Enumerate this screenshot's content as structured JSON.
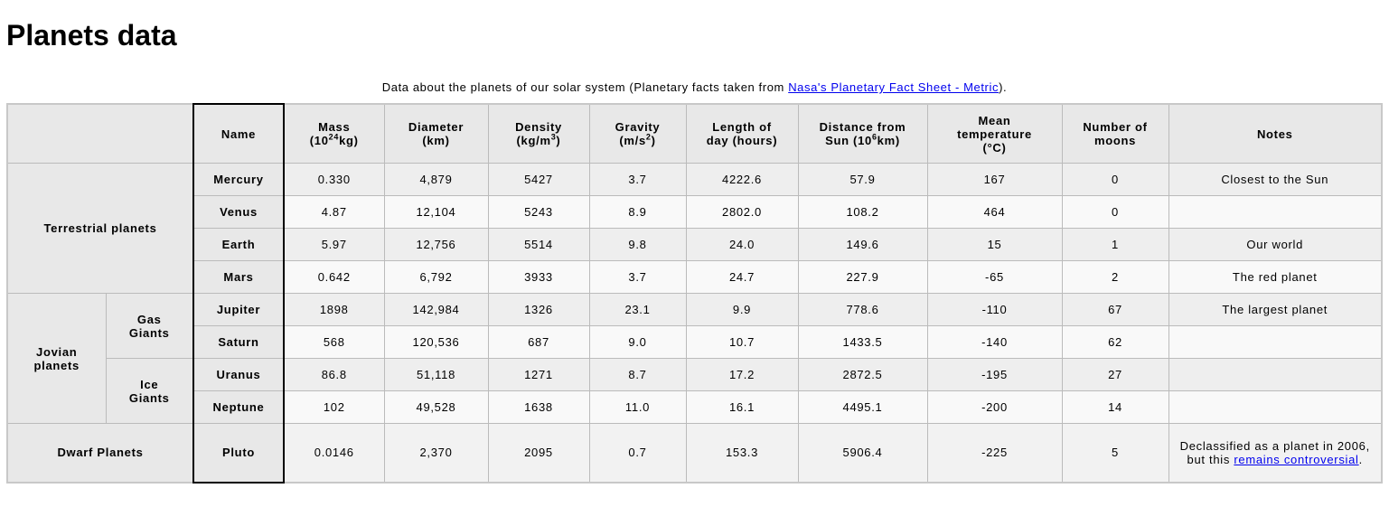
{
  "page": {
    "title": "Planets data"
  },
  "caption": {
    "prefix": "Data about the planets of our solar system (Planetary facts taken from ",
    "link_text": "Nasa's Planetary Fact Sheet - Metric",
    "suffix": ")."
  },
  "headers": {
    "name": "Name",
    "mass_a": "Mass",
    "mass_b": "(10",
    "mass_sup": "24",
    "mass_c": "kg)",
    "diameter_a": "Diameter",
    "diameter_b": "(km)",
    "density_a": "Density",
    "density_b": "(kg/m",
    "density_sup": "3",
    "density_c": ")",
    "gravity_a": "Gravity",
    "gravity_b": "(m/s",
    "gravity_sup": "2",
    "gravity_c": ")",
    "day_a": "Length of",
    "day_b": "day (hours)",
    "distance_a": "Distance from",
    "distance_b": "Sun (10",
    "distance_sup": "6",
    "distance_c": "km)",
    "temp_a": "Mean",
    "temp_b": "temperature",
    "temp_c": "(°C)",
    "moons_a": "Number of",
    "moons_b": "moons",
    "notes": "Notes"
  },
  "groups": {
    "terrestrial": "Terrestrial planets",
    "jovian_a": "Jovian",
    "jovian_b": "planets",
    "gas_a": "Gas",
    "gas_b": "Giants",
    "ice_a": "Ice",
    "ice_b": "Giants",
    "dwarf": "Dwarf Planets"
  },
  "planets": [
    {
      "name": "Mercury",
      "mass": "0.330",
      "diameter": "4,879",
      "density": "5427",
      "gravity": "3.7",
      "day": "4222.6",
      "distance": "57.9",
      "temp": "167",
      "moons": "0",
      "notes": "Closest to the Sun"
    },
    {
      "name": "Venus",
      "mass": "4.87",
      "diameter": "12,104",
      "density": "5243",
      "gravity": "8.9",
      "day": "2802.0",
      "distance": "108.2",
      "temp": "464",
      "moons": "0",
      "notes": ""
    },
    {
      "name": "Earth",
      "mass": "5.97",
      "diameter": "12,756",
      "density": "5514",
      "gravity": "9.8",
      "day": "24.0",
      "distance": "149.6",
      "temp": "15",
      "moons": "1",
      "notes": "Our world"
    },
    {
      "name": "Mars",
      "mass": "0.642",
      "diameter": "6,792",
      "density": "3933",
      "gravity": "3.7",
      "day": "24.7",
      "distance": "227.9",
      "temp": "-65",
      "moons": "2",
      "notes": "The red planet"
    },
    {
      "name": "Jupiter",
      "mass": "1898",
      "diameter": "142,984",
      "density": "1326",
      "gravity": "23.1",
      "day": "9.9",
      "distance": "778.6",
      "temp": "-110",
      "moons": "67",
      "notes": "The largest planet"
    },
    {
      "name": "Saturn",
      "mass": "568",
      "diameter": "120,536",
      "density": "687",
      "gravity": "9.0",
      "day": "10.7",
      "distance": "1433.5",
      "temp": "-140",
      "moons": "62",
      "notes": ""
    },
    {
      "name": "Uranus",
      "mass": "86.8",
      "diameter": "51,118",
      "density": "1271",
      "gravity": "8.7",
      "day": "17.2",
      "distance": "2872.5",
      "temp": "-195",
      "moons": "27",
      "notes": ""
    },
    {
      "name": "Neptune",
      "mass": "102",
      "diameter": "49,528",
      "density": "1638",
      "gravity": "11.0",
      "day": "16.1",
      "distance": "4495.1",
      "temp": "-200",
      "moons": "14",
      "notes": ""
    },
    {
      "name": "Pluto",
      "mass": "0.0146",
      "diameter": "2,370",
      "density": "2095",
      "gravity": "0.7",
      "day": "153.3",
      "distance": "5906.4",
      "temp": "-225",
      "moons": "5",
      "notes": ""
    }
  ],
  "pluto_notes": {
    "prefix": "Declassified as a planet in 2006, but this ",
    "link_text": "remains controversial",
    "suffix": "."
  }
}
